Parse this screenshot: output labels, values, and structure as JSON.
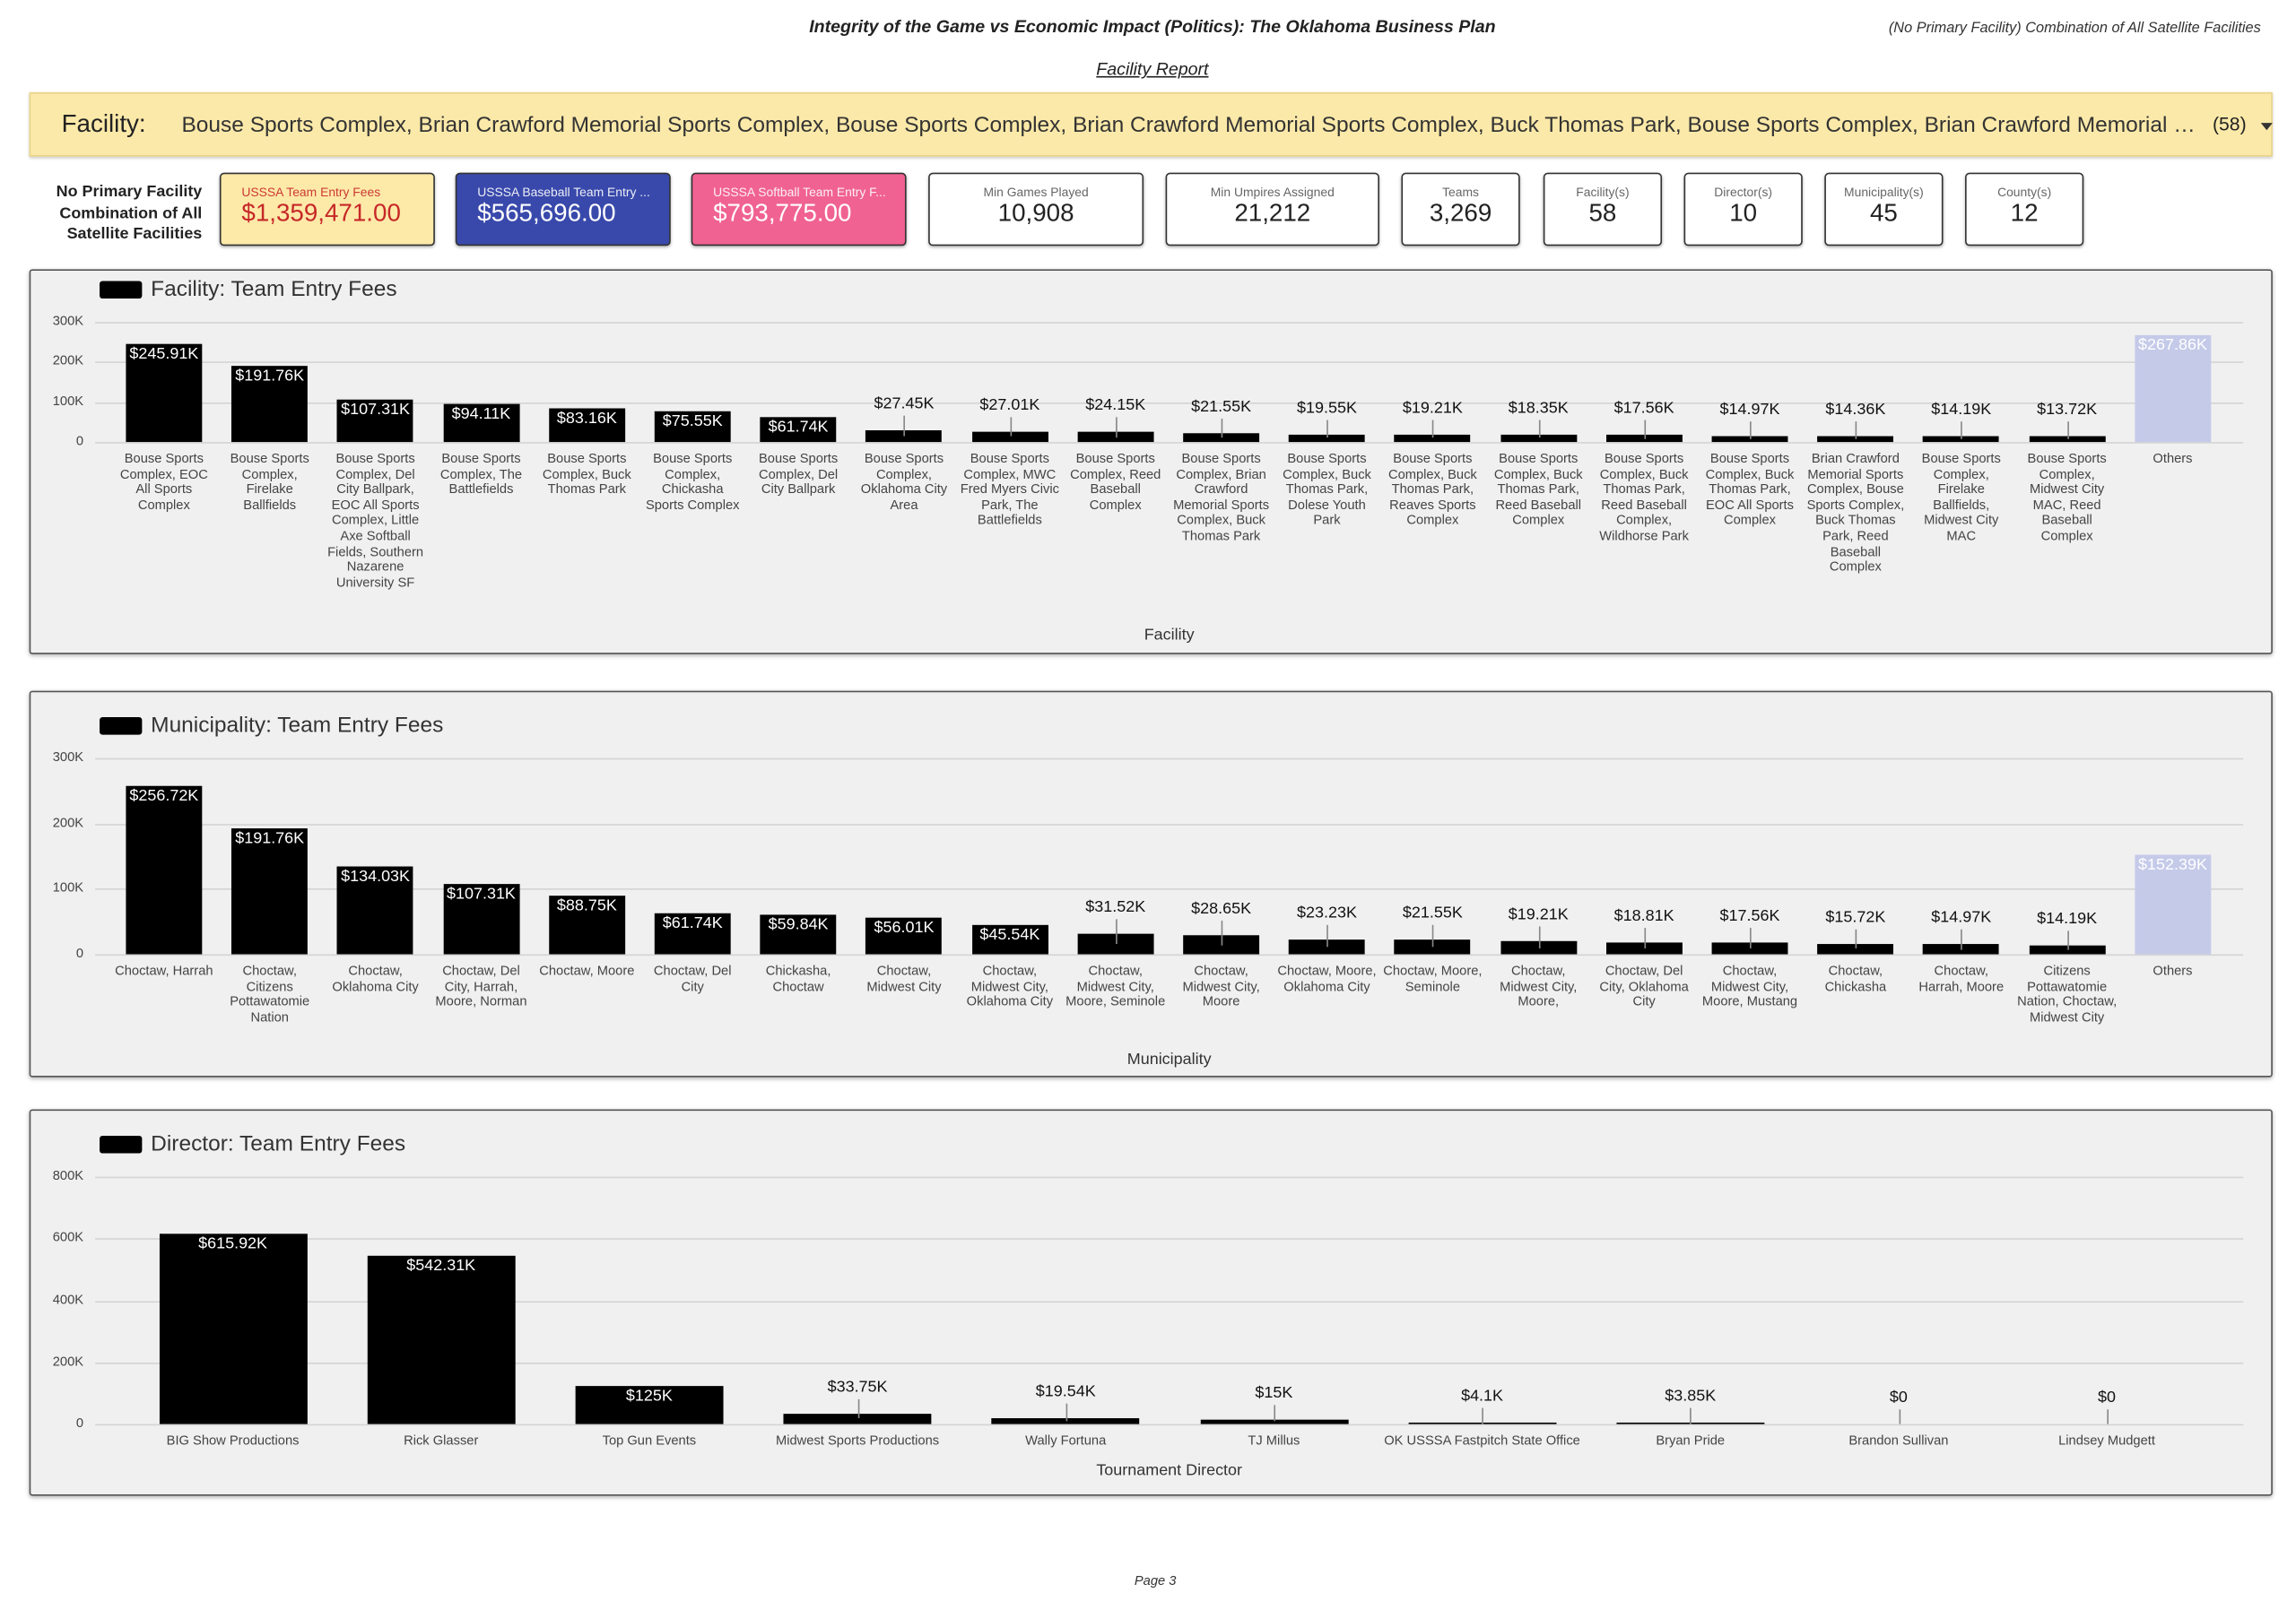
{
  "header": {
    "title": "Integrity of the Game vs Economic Impact (Politics): The Oklahoma Business Plan",
    "note": "(No Primary Facility) Combination of All Satellite Facilities",
    "subtitle": "Facility Report"
  },
  "filter": {
    "label": "Facility:",
    "value": "Bouse Sports Complex, Brian Crawford Memorial Sports Complex, Bouse Sports Complex, Brian Crawford Memorial Sports Complex, Buck Thomas Park, Bouse Sports Complex, Brian Crawford Memorial Spo…",
    "count": "(58)"
  },
  "scope_label": "No Primary Facility Combination of All Satellite Facilities",
  "scorecards": [
    {
      "label": "USSSA Team Entry Fees",
      "value": "$1,359,471.00",
      "color": "#fde9a8",
      "text_color": "#c62828"
    },
    {
      "label": "USSSA Baseball Team Entry ...",
      "value": "$565,696.00",
      "color": "#3949ab",
      "text_color": "#ffffff"
    },
    {
      "label": "USSSA Softball Team Entry F...",
      "value": "$793,775.00",
      "color": "#f06292",
      "text_color": "#ffffff"
    },
    {
      "label": "Min Games Played",
      "value": "10,908",
      "color": "#ffffff",
      "text_color": "#222222"
    },
    {
      "label": "Min Umpires Assigned",
      "value": "21,212",
      "color": "#ffffff",
      "text_color": "#222222"
    },
    {
      "label": "Teams",
      "value": "3,269",
      "color": "#ffffff",
      "text_color": "#222222"
    },
    {
      "label": "Facility(s)",
      "value": "58",
      "color": "#ffffff",
      "text_color": "#222222"
    },
    {
      "label": "Director(s)",
      "value": "10",
      "color": "#ffffff",
      "text_color": "#222222"
    },
    {
      "label": "Municipality(s)",
      "value": "45",
      "color": "#ffffff",
      "text_color": "#222222"
    },
    {
      "label": "County(s)",
      "value": "12",
      "color": "#ffffff",
      "text_color": "#222222"
    }
  ],
  "chart_data": [
    {
      "type": "bar",
      "title": "Facility: Team Entry Fees",
      "x_label": "Facility",
      "categories": [
        "Bouse Sports Complex, EOC All Sports Complex",
        "Bouse Sports Complex, Firelake Ballfields",
        "Bouse Sports Complex, Del City Ballpark, EOC All Sports Complex, Little Axe Softball Fields, Southern Nazarene University SF",
        "Bouse Sports Complex, The Battlefields",
        "Bouse Sports Complex, Buck Thomas Park",
        "Bouse Sports Complex, Chickasha Sports Complex",
        "Bouse Sports Complex, Del City Ballpark",
        "Bouse Sports Complex, Oklahoma City Area",
        "Bouse Sports Complex, MWC Fred Myers Civic Park, The Battlefields",
        "Bouse Sports Complex, Reed Baseball Complex",
        "Bouse Sports Complex, Brian Crawford Memorial Sports Complex, Buck Thomas Park",
        "Bouse Sports Complex, Buck Thomas Park, Dolese Youth Park",
        "Bouse Sports Complex, Buck Thomas Park, Reaves Sports Complex",
        "Bouse Sports Complex, Buck Thomas Park, Reed Baseball Complex",
        "Bouse Sports Complex, Buck Thomas Park, Reed Baseball Complex, Wildhorse Park",
        "Bouse Sports Complex, Buck Thomas Park, EOC All Sports Complex",
        "Brian Crawford Memorial Sports Complex, Bouse Sports Complex, Buck Thomas Park, Reed Baseball Complex",
        "Bouse Sports Complex, Firelake Ballfields, Midwest City MAC",
        "Bouse Sports Complex, Midwest City MAC, Reed Baseball Complex",
        "Others"
      ],
      "values": [
        245910,
        191760,
        107310,
        94110,
        83160,
        75550,
        61740,
        27450,
        27010,
        24150,
        21550,
        19550,
        19210,
        18350,
        17560,
        14970,
        14360,
        14190,
        13720,
        267860
      ],
      "value_labels": [
        "$245.91K",
        "$191.76K",
        "$107.31K",
        "$94.11K",
        "$83.16K",
        "$75.55K",
        "$61.74K",
        "$27.45K",
        "$27.01K",
        "$24.15K",
        "$21.55K",
        "$19.55K",
        "$19.21K",
        "$18.35K",
        "$17.56K",
        "$14.97K",
        "$14.36K",
        "$14.19K",
        "$13.72K",
        "$267.86K"
      ],
      "colors": [
        "#000000",
        "#000000",
        "#000000",
        "#000000",
        "#000000",
        "#000000",
        "#000000",
        "#000000",
        "#000000",
        "#000000",
        "#000000",
        "#000000",
        "#000000",
        "#000000",
        "#000000",
        "#000000",
        "#000000",
        "#000000",
        "#000000",
        "#c5cae9"
      ],
      "ylim": [
        0,
        300000
      ],
      "yticks": [
        0,
        {
          "value": 100000,
          "label": "100K"
        },
        {
          "value": 200000,
          "label": "200K"
        },
        {
          "value": 300000,
          "label": "300K"
        }
      ],
      "grid": true
    },
    {
      "type": "bar",
      "title": "Municipality: Team Entry Fees",
      "x_label": "Municipality",
      "categories": [
        "Choctaw, Harrah",
        "Choctaw, Citizens Pottawatomie Nation",
        "Choctaw, Oklahoma City",
        "Choctaw, Del City, Harrah, Moore, Norman",
        "Choctaw, Moore",
        "Choctaw, Del City",
        "Chickasha, Choctaw",
        "Choctaw, Midwest City",
        "Choctaw, Midwest City, Oklahoma City",
        "Choctaw, Midwest City, Moore, Seminole",
        "Choctaw, Midwest City, Moore",
        "Choctaw, Moore, Oklahoma City",
        "Choctaw, Moore, Seminole",
        "Choctaw, Midwest City, Moore,",
        "Choctaw, Del City, Oklahoma City",
        "Choctaw, Midwest City, Moore, Mustang",
        "Choctaw, Chickasha",
        "Choctaw, Harrah, Moore",
        "Citizens Pottawatomie Nation, Choctaw, Midwest City",
        "Others"
      ],
      "values": [
        256720,
        191760,
        134030,
        107310,
        88750,
        61740,
        59840,
        56010,
        45540,
        31520,
        28650,
        23230,
        21550,
        19210,
        18810,
        17560,
        15720,
        14970,
        14190,
        152390
      ],
      "value_labels": [
        "$256.72K",
        "$191.76K",
        "$134.03K",
        "$107.31K",
        "$88.75K",
        "$61.74K",
        "$59.84K",
        "$56.01K",
        "$45.54K",
        "$31.52K",
        "$28.65K",
        "$23.23K",
        "$21.55K",
        "$19.21K",
        "$18.81K",
        "$17.56K",
        "$15.72K",
        "$14.97K",
        "$14.19K",
        "$152.39K"
      ],
      "colors": [
        "#000000",
        "#000000",
        "#000000",
        "#000000",
        "#000000",
        "#000000",
        "#000000",
        "#000000",
        "#000000",
        "#000000",
        "#000000",
        "#000000",
        "#000000",
        "#000000",
        "#000000",
        "#000000",
        "#000000",
        "#000000",
        "#000000",
        "#c5cae9"
      ],
      "ylim": [
        0,
        300000
      ],
      "yticks": [
        0,
        {
          "value": 100000,
          "label": "100K"
        },
        {
          "value": 200000,
          "label": "200K"
        },
        {
          "value": 300000,
          "label": "300K"
        }
      ],
      "grid": true
    },
    {
      "type": "bar",
      "title": "Director: Team Entry Fees",
      "x_label": "Tournament Director",
      "categories": [
        "BIG Show Productions",
        "Rick Glasser",
        "Top Gun Events",
        "Midwest Sports Productions",
        "Wally Fortuna",
        "TJ Millus",
        "OK USSSA Fastpitch State Office",
        "Bryan Pride",
        "Brandon Sullivan",
        "Lindsey Mudgett"
      ],
      "values": [
        615920,
        542310,
        125000,
        33750,
        19540,
        15000,
        4100,
        3850,
        0,
        0
      ],
      "value_labels": [
        "$615.92K",
        "$542.31K",
        "$125K",
        "$33.75K",
        "$19.54K",
        "$15K",
        "$4.1K",
        "$3.85K",
        "$0",
        "$0"
      ],
      "colors": [
        "#000000",
        "#000000",
        "#000000",
        "#000000",
        "#000000",
        "#000000",
        "#000000",
        "#000000",
        "#000000",
        "#000000"
      ],
      "ylim": [
        0,
        800000
      ],
      "yticks": [
        0,
        {
          "value": 200000,
          "label": "200K"
        },
        {
          "value": 400000,
          "label": "400K"
        },
        {
          "value": 600000,
          "label": "600K"
        },
        {
          "value": 800000,
          "label": "800K"
        }
      ],
      "grid": true
    }
  ],
  "footer": "Page 3"
}
